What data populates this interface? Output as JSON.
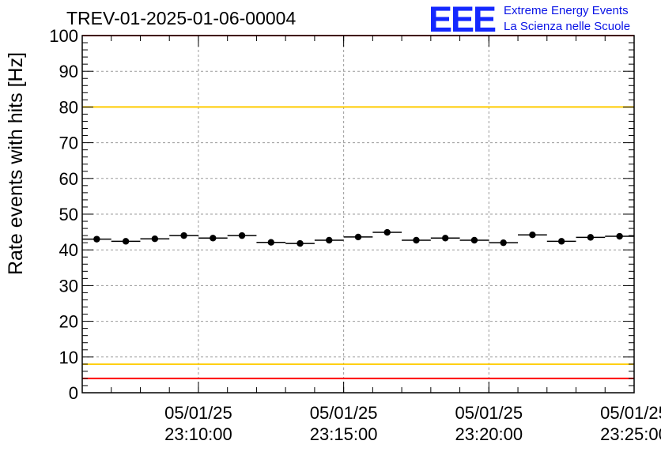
{
  "header": {
    "run_title": "TREV-01-2025-01-06-00004",
    "logo": {
      "mark": "EEE",
      "line1": "Extreme Energy Events",
      "line2": "La Scienza nelle Scuole",
      "color": "#1428ff"
    }
  },
  "chart_data": {
    "type": "scatter",
    "title": "",
    "xlabel": "",
    "ylabel": "Rate events with hits [Hz]",
    "ylim": [
      0,
      100
    ],
    "yticks": [
      0,
      10,
      20,
      30,
      40,
      50,
      60,
      70,
      80,
      90,
      100
    ],
    "xlim": [
      "05/01/25 23:06:00",
      "05/01/25 23:25:00"
    ],
    "xticks": [
      {
        "date": "05/01/25",
        "time": "23:10:00"
      },
      {
        "date": "05/01/25",
        "time": "23:15:00"
      },
      {
        "date": "05/01/25",
        "time": "23:20:00"
      },
      {
        "date": "05/01/25",
        "time": "23:25:00"
      }
    ],
    "grid": true,
    "bin_width_seconds": 60,
    "x": [
      "23:06:30",
      "23:07:30",
      "23:08:30",
      "23:09:30",
      "23:10:30",
      "23:11:30",
      "23:12:30",
      "23:13:30",
      "23:14:30",
      "23:15:30",
      "23:16:30",
      "23:17:30",
      "23:18:30",
      "23:19:30",
      "23:20:30",
      "23:21:30",
      "23:22:30",
      "23:23:30",
      "23:24:30"
    ],
    "values": [
      43.0,
      42.4,
      43.1,
      44.0,
      43.3,
      44.0,
      42.1,
      41.8,
      42.7,
      43.6,
      44.9,
      42.7,
      43.3,
      42.7,
      42.0,
      44.2,
      42.4,
      43.5,
      43.8
    ],
    "reference_lines": [
      {
        "y": 100,
        "color": "#ff0000"
      },
      {
        "y": 80,
        "color": "#ffcc00"
      },
      {
        "y": 8,
        "color": "#ffcc00"
      },
      {
        "y": 4,
        "color": "#ff0000"
      }
    ],
    "marker_color": "#000000"
  }
}
